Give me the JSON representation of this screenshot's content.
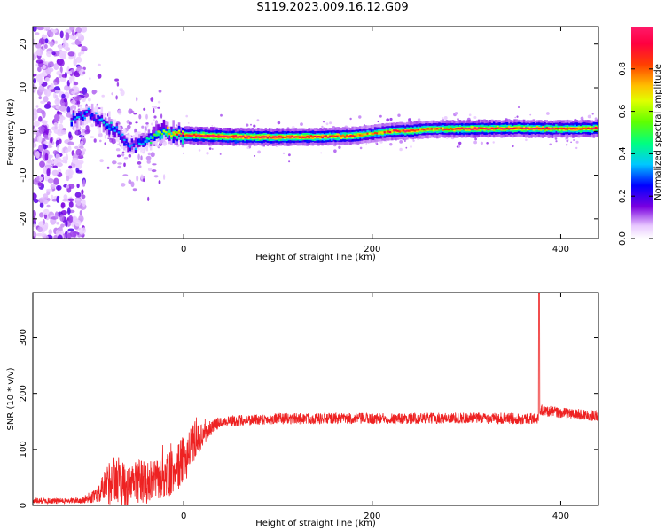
{
  "figure_title": "S119.2023.009.16.12.G09",
  "chart_data": [
    {
      "type": "heatmap",
      "description_of_marks": "time-frequency spectrogram",
      "xlabel": "Height of straight line (km)",
      "ylabel": "Frequency (Hz)",
      "xlim": [
        -160,
        440
      ],
      "ylim": [
        -24.5,
        24
      ],
      "x_ticks": [
        0,
        200,
        400
      ],
      "y_ticks": [
        20,
        10,
        0,
        -10,
        -20
      ],
      "colorbar": {
        "label": "Normalized spectral amplitude",
        "range": [
          0,
          1
        ],
        "ticks": [
          0.0,
          0.2,
          0.4,
          0.6,
          0.8
        ],
        "tick_labels": [
          "0.0",
          "0.2",
          "0.4",
          "0.6",
          "0.8"
        ]
      },
      "ridge": {
        "x": [
          -120,
          -100,
          -90,
          -80,
          -70,
          -60,
          -50,
          -40,
          -30,
          -20,
          -10,
          0,
          20,
          50,
          100,
          150,
          180,
          200,
          220,
          240,
          260,
          300,
          350,
          400,
          440
        ],
        "freq": [
          2.5,
          4,
          3,
          1,
          0,
          -3,
          -3,
          -2,
          -1,
          0,
          -0.5,
          -0.8,
          -1,
          -1.2,
          -1.3,
          -1.2,
          -1,
          -0.5,
          0,
          0.2,
          0.5,
          0.6,
          0.7,
          0.6,
          0.7
        ],
        "amplitude": [
          0.35,
          0.3,
          0.3,
          0.4,
          0.3,
          0.3,
          0.3,
          0.4,
          0.5,
          0.6,
          0.8,
          0.9,
          1.0,
          1.0,
          0.95,
          0.9,
          0.85,
          0.7,
          0.85,
          0.9,
          0.8,
          0.95,
          0.9,
          0.9,
          0.9
        ]
      }
    },
    {
      "type": "line",
      "xlabel": "Height of straight line (km)",
      "ylabel": "SNR (10 * v/v)",
      "xlim": [
        -160,
        440
      ],
      "ylim": [
        0,
        380
      ],
      "x_ticks": [
        0,
        200,
        400
      ],
      "y_ticks": [
        0,
        100,
        200,
        300
      ],
      "color": "#ee2222",
      "envelope": {
        "x": [
          -160,
          -120,
          -100,
          -90,
          -80,
          -70,
          -60,
          -50,
          -40,
          -30,
          -20,
          -10,
          0,
          10,
          20,
          30,
          40,
          60,
          100,
          200,
          300,
          375,
          376,
          380,
          400,
          440
        ],
        "mean": [
          8,
          8,
          12,
          20,
          40,
          50,
          30,
          45,
          40,
          45,
          50,
          60,
          80,
          110,
          125,
          140,
          150,
          152,
          155,
          155,
          156,
          155,
          160,
          170,
          165,
          160
        ],
        "spread": [
          5,
          5,
          8,
          15,
          40,
          45,
          35,
          40,
          40,
          35,
          40,
          40,
          45,
          35,
          20,
          12,
          10,
          10,
          10,
          10,
          10,
          10,
          10,
          10,
          10,
          10
        ]
      },
      "spike": {
        "x": 377,
        "value": 378
      }
    }
  ]
}
